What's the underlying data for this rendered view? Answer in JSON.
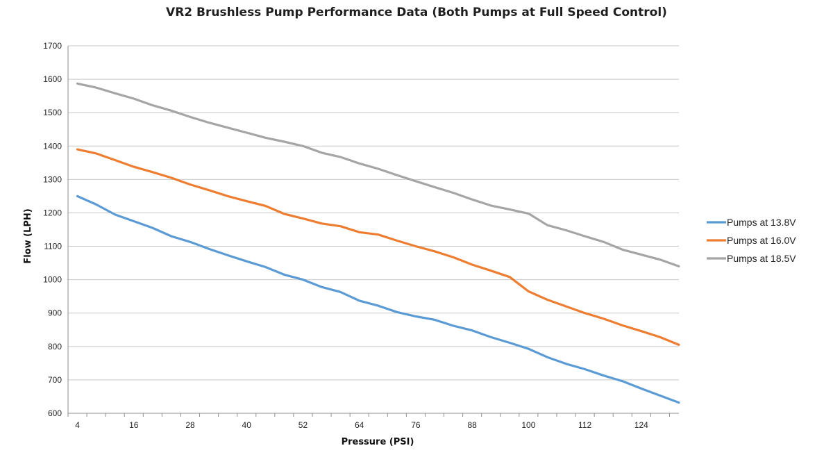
{
  "chart_data": {
    "type": "line",
    "title": "VR2 Brushless Pump Performance Data (Both Pumps at Full Speed Control)",
    "xlabel": "Pressure (PSI)",
    "ylabel": "Flow (LPH)",
    "xlim": [
      2,
      132
    ],
    "ylim": [
      600,
      1700
    ],
    "x_ticks": [
      4,
      16,
      28,
      40,
      52,
      64,
      76,
      88,
      100,
      112,
      124
    ],
    "y_ticks": [
      600,
      700,
      800,
      900,
      1000,
      1100,
      1200,
      1300,
      1400,
      1500,
      1600,
      1700
    ],
    "grid": true,
    "legend_position": "right",
    "x": [
      4,
      8,
      12,
      16,
      20,
      24,
      28,
      32,
      36,
      40,
      44,
      48,
      52,
      56,
      60,
      64,
      68,
      72,
      76,
      80,
      84,
      88,
      92,
      96,
      100,
      104,
      108,
      112,
      116,
      120,
      124,
      128,
      132
    ],
    "series": [
      {
        "name": "Pumps at 13.8V",
        "color": "#5b9bd5",
        "values": [
          1250,
          1225,
          1195,
          1175,
          1155,
          1130,
          1113,
          1092,
          1073,
          1055,
          1038,
          1015,
          1000,
          978,
          963,
          937,
          922,
          903,
          890,
          880,
          862,
          848,
          828,
          811,
          793,
          768,
          748,
          732,
          713,
          696,
          674,
          653,
          632
        ]
      },
      {
        "name": "Pumps at 16.0V",
        "color": "#ed7d31",
        "values": [
          1390,
          1378,
          1358,
          1338,
          1322,
          1305,
          1285,
          1268,
          1250,
          1235,
          1221,
          1197,
          1183,
          1168,
          1160,
          1142,
          1135,
          1117,
          1100,
          1085,
          1067,
          1045,
          1027,
          1008,
          965,
          940,
          920,
          900,
          883,
          863,
          846,
          828,
          805
        ]
      },
      {
        "name": "Pumps at 18.5V",
        "color": "#a5a5a5",
        "values": [
          1587,
          1575,
          1558,
          1542,
          1522,
          1506,
          1487,
          1470,
          1455,
          1440,
          1425,
          1413,
          1400,
          1380,
          1367,
          1348,
          1332,
          1313,
          1295,
          1277,
          1260,
          1240,
          1222,
          1210,
          1198,
          1163,
          1148,
          1130,
          1113,
          1090,
          1075,
          1060,
          1040
        ]
      }
    ]
  }
}
